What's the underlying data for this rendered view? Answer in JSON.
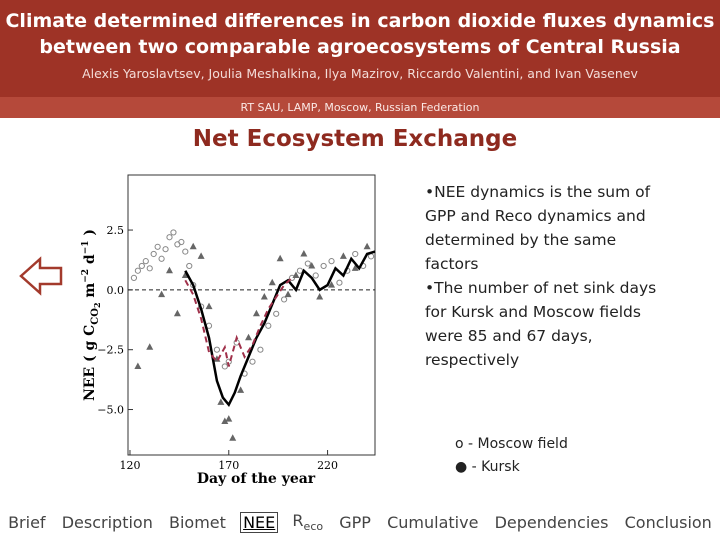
{
  "header": {
    "title_lines": [
      "Climate determined differences in carbon dioxide fluxes dynamics",
      "between two comparable agroecosystems of Central Russia"
    ],
    "authors": "Alexis Yaroslavtsev, Joulia Meshalkina, Ilya Mazirov, Riccardo Valentini, and Ivan Vasenev",
    "affiliation": "RT SAU, LAMP, Moscow, Russian Federation"
  },
  "section_title": "Net Ecosystem Exchange",
  "chart_data": {
    "type": "scatter",
    "x_label": "Day of the year",
    "y_label": [
      "NEE ( g C",
      "CO",
      "2",
      " m",
      "−2",
      " d",
      "−1",
      " )"
    ],
    "xlim": [
      119,
      244
    ],
    "xticks": [
      120,
      170,
      220
    ],
    "ylim": [
      -6.9,
      4.8
    ],
    "yticks": [
      2.5,
      {
        "value": 0,
        "label": "0.0"
      },
      {
        "value": -2.5,
        "label": "−2.5"
      },
      {
        "value": -5,
        "label": "−5.0"
      }
    ],
    "zero_line": true,
    "series": [
      {
        "name": "o - Moscow field",
        "color": "#888888",
        "x": [
          122,
          124,
          126,
          128,
          130,
          132,
          134,
          136,
          138,
          140,
          142,
          144,
          146,
          148,
          150,
          152,
          156,
          160,
          164,
          168,
          170,
          174,
          178,
          182,
          186,
          190,
          194,
          198,
          202,
          206,
          210,
          214,
          218,
          222,
          226,
          230,
          234,
          238,
          242
        ],
        "values": [
          0.5,
          0.8,
          1.0,
          1.2,
          0.9,
          1.5,
          1.8,
          1.3,
          1.7,
          2.2,
          2.4,
          1.9,
          2.0,
          1.6,
          1.0,
          0.2,
          -0.7,
          -1.5,
          -2.5,
          -3.2,
          -3.0,
          -2.2,
          -3.5,
          -3.0,
          -2.5,
          -1.5,
          -1.0,
          -0.4,
          0.5,
          0.8,
          1.1,
          0.6,
          1.0,
          1.2,
          0.3,
          0.8,
          1.5,
          1.0,
          1.4
        ]
      },
      {
        "name": "● - Kursk",
        "color": "#666666",
        "x": [
          124,
          130,
          136,
          140,
          144,
          148,
          152,
          156,
          160,
          164,
          166,
          168,
          170,
          172,
          176,
          180,
          184,
          188,
          192,
          196,
          200,
          204,
          208,
          212,
          216,
          222,
          228,
          234,
          240
        ],
        "values": [
          -3.2,
          -2.4,
          -0.2,
          0.8,
          -1.0,
          0.6,
          1.8,
          1.4,
          -0.7,
          -2.9,
          -4.7,
          -5.5,
          -5.4,
          -6.2,
          -4.2,
          -2.0,
          -1.0,
          -0.3,
          0.3,
          1.3,
          -0.2,
          0.6,
          1.5,
          1.0,
          -0.3,
          0.2,
          1.4,
          0.9,
          1.8
        ]
      }
    ],
    "lines": [
      {
        "color": "#000000",
        "dash": false,
        "x": [
          148,
          152,
          156,
          160,
          164,
          167,
          170,
          173,
          176,
          180,
          184,
          188,
          192,
          196,
          200,
          204,
          208,
          212,
          216,
          220,
          224,
          228,
          232,
          236,
          240,
          244
        ],
        "values": [
          0.8,
          0.2,
          -0.8,
          -2.0,
          -3.8,
          -4.5,
          -4.8,
          -4.3,
          -3.6,
          -2.8,
          -2.0,
          -1.4,
          -0.6,
          0.2,
          0.4,
          0.0,
          0.8,
          0.5,
          0.0,
          0.2,
          0.9,
          0.6,
          1.3,
          0.9,
          1.5,
          1.6
        ]
      },
      {
        "color": "#a0304a",
        "dash": true,
        "x": [
          148,
          152,
          156,
          160,
          164,
          168,
          170,
          174,
          178,
          182,
          186,
          190,
          194,
          198,
          202
        ],
        "values": [
          0.4,
          -0.2,
          -1.2,
          -2.6,
          -3.0,
          -2.4,
          -3.2,
          -2.0,
          -2.8,
          -2.3,
          -1.5,
          -0.8,
          -0.3,
          0.2,
          0.5
        ]
      }
    ]
  },
  "bullets": [
    "•NEE dynamics is the sum of GPP and Reco dynamics and determined by the same factors",
    "•The number of net sink days  for Kursk and Moscow fields were 85 and 67 days, respectively"
  ],
  "nav": [
    {
      "text": "Brief"
    },
    {
      "text": "Description"
    },
    {
      "text": "Biomet"
    },
    {
      "text": "NEE"
    },
    {
      "text": "R",
      "sub": "eco"
    },
    {
      "text": "GPP"
    },
    {
      "text": "Cumulative"
    },
    {
      "text": "Dependencies"
    },
    {
      "text": "Conclusion"
    }
  ]
}
